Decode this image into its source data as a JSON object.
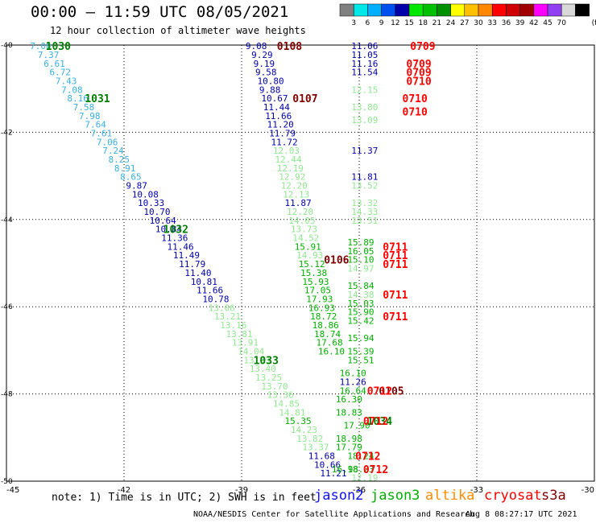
{
  "header": {
    "title": "00:00 – 11:59 UTC 08/05/2021",
    "subtitle": "12 hour collection of altimeter wave heights"
  },
  "colorbar": {
    "colors": [
      "#808080",
      "#00e8e8",
      "#00b0ff",
      "#0050f0",
      "#0000a8",
      "#00e800",
      "#00c000",
      "#009000",
      "#ffff00",
      "#ffc000",
      "#ff8800",
      "#ff0000",
      "#d00000",
      "#a00000",
      "#ff00ff",
      "#9040f0",
      "#d8d8d8",
      "#000000"
    ],
    "labels": [
      "3",
      "6",
      "9",
      "12",
      "15",
      "18",
      "21",
      "24",
      "27",
      "30",
      "33",
      "36",
      "39",
      "42",
      "45",
      "70"
    ],
    "unit": "(ft)"
  },
  "footer": {
    "notes": "note: 1) Time is in UTC; 2) SWH is in feet",
    "credit": "NOAA/NESDIS Center for Satellite Applications and Research",
    "timestamp": "Aug  8 08:27:17 UTC 2021"
  },
  "satellites": [
    {
      "name": "jason2",
      "color": "#1010ff"
    },
    {
      "name": "jason3",
      "color": "#00b000"
    },
    {
      "name": "altika",
      "color": "#ff8c00"
    },
    {
      "name": "cryosat",
      "color": "#ff0000"
    },
    {
      "name": "s3a",
      "color": "#800000"
    }
  ],
  "chart_data": {
    "type": "scatter",
    "x_ticks": [
      "-45",
      "-42",
      "-39",
      "-36",
      "-33",
      "-30"
    ],
    "y_ticks": [
      "-50",
      "-48",
      "-46",
      "-44",
      "-42",
      "-40"
    ],
    "xlim": [
      -45,
      -30
    ],
    "ylim": [
      -50,
      -40
    ],
    "grid": true,
    "points": [
      {
        "x": -44.4,
        "y": -40.02,
        "label": "7.00",
        "color": "#38b0e0"
      },
      {
        "x": -44.2,
        "y": -40.22,
        "label": "7.37",
        "color": "#38b0e0"
      },
      {
        "x": -44.05,
        "y": -40.42,
        "label": "6.61",
        "color": "#38b0e0"
      },
      {
        "x": -43.9,
        "y": -40.62,
        "label": "6.72",
        "color": "#38b0e0"
      },
      {
        "x": -43.75,
        "y": -40.82,
        "label": "7.43",
        "color": "#38b0e0"
      },
      {
        "x": -43.6,
        "y": -41.02,
        "label": "7.08",
        "color": "#38b0e0"
      },
      {
        "x": -43.45,
        "y": -41.22,
        "label": "8.16",
        "color": "#38b0e0"
      },
      {
        "x": -43.3,
        "y": -41.42,
        "label": "7.58",
        "color": "#38b0e0"
      },
      {
        "x": -43.15,
        "y": -41.62,
        "label": "7.98",
        "color": "#38b0e0"
      },
      {
        "x": -43.0,
        "y": -41.82,
        "label": "7.64",
        "color": "#38b0e0"
      },
      {
        "x": -42.85,
        "y": -42.02,
        "label": "7.61",
        "color": "#38b0e0"
      },
      {
        "x": -42.7,
        "y": -42.22,
        "label": "7.06",
        "color": "#38b0e0"
      },
      {
        "x": -42.55,
        "y": -42.42,
        "label": "7.24",
        "color": "#38b0e0"
      },
      {
        "x": -42.4,
        "y": -42.62,
        "label": "8.25",
        "color": "#38b0e0"
      },
      {
        "x": -42.25,
        "y": -42.82,
        "label": "8.91",
        "color": "#38b0e0"
      },
      {
        "x": -42.1,
        "y": -43.02,
        "label": "8.65",
        "color": "#38b0e0"
      },
      {
        "x": -41.95,
        "y": -43.22,
        "label": "9.87",
        "color": "#0000a8"
      },
      {
        "x": -41.8,
        "y": -43.42,
        "label": "10.08",
        "color": "#0000a8"
      },
      {
        "x": -41.65,
        "y": -43.62,
        "label": "10.33",
        "color": "#0000a8"
      },
      {
        "x": -41.5,
        "y": -43.82,
        "label": "10.70",
        "color": "#0000a8"
      },
      {
        "x": -41.35,
        "y": -44.02,
        "label": "10.64",
        "color": "#0000a8"
      },
      {
        "x": -41.2,
        "y": -44.22,
        "label": "10.84",
        "color": "#0000a8"
      },
      {
        "x": -41.05,
        "y": -44.42,
        "label": "11.36",
        "color": "#0000a8"
      },
      {
        "x": -40.9,
        "y": -44.62,
        "label": "11.46",
        "color": "#0000a8"
      },
      {
        "x": -40.75,
        "y": -44.82,
        "label": "11.49",
        "color": "#0000a8"
      },
      {
        "x": -40.6,
        "y": -45.02,
        "label": "11.79",
        "color": "#0000a8"
      },
      {
        "x": -40.45,
        "y": -45.22,
        "label": "11.40",
        "color": "#0000a8"
      },
      {
        "x": -40.3,
        "y": -45.42,
        "label": "10.81",
        "color": "#0000a8"
      },
      {
        "x": -40.15,
        "y": -45.62,
        "label": "11.66",
        "color": "#0000a8"
      },
      {
        "x": -40.0,
        "y": -45.82,
        "label": "10.78",
        "color": "#0000a8"
      },
      {
        "x": -39.85,
        "y": -46.02,
        "label": "13.06",
        "color": "#90e890"
      },
      {
        "x": -39.7,
        "y": -46.22,
        "label": "13.21",
        "color": "#90e890"
      },
      {
        "x": -39.55,
        "y": -46.42,
        "label": "13.16",
        "color": "#90e890"
      },
      {
        "x": -39.4,
        "y": -46.62,
        "label": "13.81",
        "color": "#90e890"
      },
      {
        "x": -39.25,
        "y": -46.82,
        "label": "13.91",
        "color": "#90e890"
      },
      {
        "x": -39.1,
        "y": -47.02,
        "label": "14.04",
        "color": "#90e890"
      },
      {
        "x": -38.95,
        "y": -47.22,
        "label": "13.23",
        "color": "#90e890"
      },
      {
        "x": -38.8,
        "y": -47.42,
        "label": "13.40",
        "color": "#90e890"
      },
      {
        "x": -38.65,
        "y": -47.62,
        "label": "13.25",
        "color": "#90e890"
      },
      {
        "x": -38.5,
        "y": -47.82,
        "label": "13.70",
        "color": "#90e890"
      },
      {
        "x": -38.35,
        "y": -48.02,
        "label": "13.36",
        "color": "#90e890"
      },
      {
        "x": -38.2,
        "y": -48.22,
        "label": "14.85",
        "color": "#90e890"
      },
      {
        "x": -38.05,
        "y": -48.42,
        "label": "14.81",
        "color": "#90e890"
      },
      {
        "x": -37.9,
        "y": -48.62,
        "label": "15.35",
        "color": "#00b000"
      },
      {
        "x": -37.75,
        "y": -48.82,
        "label": "14.23",
        "color": "#90e890"
      },
      {
        "x": -37.6,
        "y": -49.02,
        "label": "13.82",
        "color": "#90e890"
      },
      {
        "x": -37.45,
        "y": -49.22,
        "label": "13.37",
        "color": "#90e890"
      },
      {
        "x": -37.3,
        "y": -49.42,
        "label": "11.68",
        "color": "#0000a8"
      },
      {
        "x": -37.15,
        "y": -49.62,
        "label": "10.66",
        "color": "#0000a8"
      },
      {
        "x": -37.0,
        "y": -49.82,
        "label": "11.21",
        "color": "#0000a8"
      },
      {
        "x": -38.9,
        "y": -40.02,
        "label": "9.08",
        "color": "#0000a8"
      },
      {
        "x": -38.75,
        "y": -40.22,
        "label": "9.29",
        "color": "#0000a8"
      },
      {
        "x": -38.7,
        "y": -40.42,
        "label": "9.19",
        "color": "#0000a8"
      },
      {
        "x": -38.65,
        "y": -40.62,
        "label": "9.58",
        "color": "#0000a8"
      },
      {
        "x": -38.6,
        "y": -40.82,
        "label": "10.80",
        "color": "#0000a8"
      },
      {
        "x": -38.55,
        "y": -41.02,
        "label": "9.88",
        "color": "#0000a8"
      },
      {
        "x": -38.5,
        "y": -41.22,
        "label": "10.67",
        "color": "#0000a8"
      },
      {
        "x": -38.45,
        "y": -41.42,
        "label": "11.44",
        "color": "#0000a8"
      },
      {
        "x": -38.4,
        "y": -41.62,
        "label": "11.66",
        "color": "#0000a8"
      },
      {
        "x": -38.35,
        "y": -41.82,
        "label": "11.20",
        "color": "#0000a8"
      },
      {
        "x": -38.3,
        "y": -42.02,
        "label": "11.79",
        "color": "#0000a8"
      },
      {
        "x": -38.25,
        "y": -42.22,
        "label": "11.72",
        "color": "#0000a8"
      },
      {
        "x": -38.2,
        "y": -42.42,
        "label": "12.03",
        "color": "#90e890"
      },
      {
        "x": -38.15,
        "y": -42.62,
        "label": "12.44",
        "color": "#90e890"
      },
      {
        "x": -38.1,
        "y": -42.82,
        "label": "12.19",
        "color": "#90e890"
      },
      {
        "x": -38.05,
        "y": -43.02,
        "label": "12.92",
        "color": "#90e890"
      },
      {
        "x": -38.0,
        "y": -43.22,
        "label": "12.20",
        "color": "#90e890"
      },
      {
        "x": -37.95,
        "y": -43.42,
        "label": "12.13",
        "color": "#90e890"
      },
      {
        "x": -37.9,
        "y": -43.62,
        "label": "11.87",
        "color": "#0000a8"
      },
      {
        "x": -37.85,
        "y": -43.82,
        "label": "12.20",
        "color": "#90e890"
      },
      {
        "x": -37.8,
        "y": -44.02,
        "label": "14.05",
        "color": "#90e890"
      },
      {
        "x": -37.75,
        "y": -44.22,
        "label": "13.73",
        "color": "#90e890"
      },
      {
        "x": -37.7,
        "y": -44.42,
        "label": "14.52",
        "color": "#90e890"
      },
      {
        "x": -37.65,
        "y": -44.62,
        "label": "15.91",
        "color": "#00b000"
      },
      {
        "x": -37.6,
        "y": -44.82,
        "label": "14.93",
        "color": "#90e890"
      },
      {
        "x": -37.55,
        "y": -45.02,
        "label": "15.12",
        "color": "#00b000"
      },
      {
        "x": -37.5,
        "y": -45.22,
        "label": "15.38",
        "color": "#00b000"
      },
      {
        "x": -37.45,
        "y": -45.42,
        "label": "15.93",
        "color": "#00b000"
      },
      {
        "x": -37.4,
        "y": -45.62,
        "label": "17.05",
        "color": "#00b000"
      },
      {
        "x": -37.35,
        "y": -45.82,
        "label": "17.93",
        "color": "#00b000"
      },
      {
        "x": -37.3,
        "y": -46.02,
        "label": "16.93",
        "color": "#00b000"
      },
      {
        "x": -37.25,
        "y": -46.22,
        "label": "18.72",
        "color": "#00b000"
      },
      {
        "x": -37.2,
        "y": -46.42,
        "label": "18.86",
        "color": "#00b000"
      },
      {
        "x": -37.15,
        "y": -46.62,
        "label": "18.74",
        "color": "#00b000"
      },
      {
        "x": -37.1,
        "y": -46.82,
        "label": "17.68",
        "color": "#00b000"
      },
      {
        "x": -37.05,
        "y": -47.02,
        "label": "16.10",
        "color": "#00b000"
      },
      {
        "x": -36.2,
        "y": -40.02,
        "label": "11.06",
        "color": "#0000a8"
      },
      {
        "x": -36.2,
        "y": -40.22,
        "label": "11.05",
        "color": "#0000a8"
      },
      {
        "x": -36.2,
        "y": -40.42,
        "label": "11.16",
        "color": "#0000a8"
      },
      {
        "x": -36.2,
        "y": -40.62,
        "label": "11.54",
        "color": "#0000a8"
      },
      {
        "x": -36.2,
        "y": -41.02,
        "label": "12.15",
        "color": "#90e890"
      },
      {
        "x": -36.2,
        "y": -41.42,
        "label": "13.80",
        "color": "#90e890"
      },
      {
        "x": -36.2,
        "y": -41.72,
        "label": "13.09",
        "color": "#90e890"
      },
      {
        "x": -36.2,
        "y": -42.42,
        "label": "11.37",
        "color": "#0000a8"
      },
      {
        "x": -36.2,
        "y": -43.02,
        "label": "11.81",
        "color": "#0000a8"
      },
      {
        "x": -36.2,
        "y": -43.22,
        "label": "13.52",
        "color": "#90e890"
      },
      {
        "x": -36.2,
        "y": -43.62,
        "label": "13.32",
        "color": "#90e890"
      },
      {
        "x": -36.2,
        "y": -43.82,
        "label": "14.33",
        "color": "#90e890"
      },
      {
        "x": -36.2,
        "y": -44.02,
        "label": "13.51",
        "color": "#90e890"
      },
      {
        "x": -36.3,
        "y": -44.52,
        "label": "15.89",
        "color": "#00b000"
      },
      {
        "x": -36.3,
        "y": -44.72,
        "label": "16.05",
        "color": "#00b000"
      },
      {
        "x": -36.3,
        "y": -44.92,
        "label": "15.10",
        "color": "#00b000"
      },
      {
        "x": -36.3,
        "y": -45.12,
        "label": "14.97",
        "color": "#90e890"
      },
      {
        "x": -36.3,
        "y": -45.52,
        "label": "15.84",
        "color": "#00b000"
      },
      {
        "x": -36.3,
        "y": -45.72,
        "label": "14.38",
        "color": "#90e890"
      },
      {
        "x": -36.3,
        "y": -45.92,
        "label": "15.03",
        "color": "#00b000"
      },
      {
        "x": -36.3,
        "y": -46.12,
        "label": "15.90",
        "color": "#00b000"
      },
      {
        "x": -36.3,
        "y": -46.32,
        "label": "15.42",
        "color": "#00b000"
      },
      {
        "x": -36.3,
        "y": -46.72,
        "label": "15.94",
        "color": "#00b000"
      },
      {
        "x": -36.3,
        "y": -47.02,
        "label": "15.39",
        "color": "#00b000"
      },
      {
        "x": -36.3,
        "y": -47.22,
        "label": "15.51",
        "color": "#00b000"
      },
      {
        "x": -36.5,
        "y": -47.52,
        "label": "16.10",
        "color": "#00b000"
      },
      {
        "x": -36.5,
        "y": -47.72,
        "label": "11.26",
        "color": "#0000a8"
      },
      {
        "x": -36.5,
        "y": -47.92,
        "label": "16.64",
        "color": "#00b000"
      },
      {
        "x": -36.6,
        "y": -48.12,
        "label": "16.30",
        "color": "#00b000"
      },
      {
        "x": -36.6,
        "y": -48.42,
        "label": "18.83",
        "color": "#00b000"
      },
      {
        "x": -36.4,
        "y": -48.72,
        "label": "17.90",
        "color": "#00b000"
      },
      {
        "x": -36.6,
        "y": -49.02,
        "label": "18.98",
        "color": "#00b000"
      },
      {
        "x": -36.6,
        "y": -49.22,
        "label": "17.79",
        "color": "#00b000"
      },
      {
        "x": -36.3,
        "y": -49.42,
        "label": "18.24",
        "color": "#00b000"
      },
      {
        "x": -36.7,
        "y": -49.72,
        "label": "16.98",
        "color": "#00b000"
      },
      {
        "x": -36.3,
        "y": -49.72,
        "label": "18.23",
        "color": "#00b000"
      },
      {
        "x": -36.2,
        "y": -49.92,
        "label": "12.19",
        "color": "#90e890"
      }
    ],
    "time_labels": [
      {
        "x": -44.0,
        "y": -40.02,
        "label": "1030",
        "color": "#008000"
      },
      {
        "x": -43.0,
        "y": -41.22,
        "label": "1031",
        "color": "#008000"
      },
      {
        "x": -41.0,
        "y": -44.22,
        "label": "1032",
        "color": "#008000"
      },
      {
        "x": -38.7,
        "y": -47.22,
        "label": "1033",
        "color": "#008000"
      },
      {
        "x": -35.8,
        "y": -48.62,
        "label": "1034",
        "color": "#008000"
      },
      {
        "x": -38.1,
        "y": -40.02,
        "label": "0108",
        "color": "#800000"
      },
      {
        "x": -37.7,
        "y": -41.22,
        "label": "0107",
        "color": "#800000"
      },
      {
        "x": -36.9,
        "y": -44.92,
        "label": "0106",
        "color": "#800000"
      },
      {
        "x": -35.5,
        "y": -47.92,
        "label": "0105",
        "color": "#800000"
      },
      {
        "x": -34.7,
        "y": -40.02,
        "label": "0709",
        "color": "#ff0000"
      },
      {
        "x": -34.8,
        "y": -40.42,
        "label": "0709",
        "color": "#ff0000"
      },
      {
        "x": -34.8,
        "y": -40.62,
        "label": "0709",
        "color": "#ff0000"
      },
      {
        "x": -34.8,
        "y": -40.82,
        "label": "0710",
        "color": "#ff0000"
      },
      {
        "x": -34.9,
        "y": -41.22,
        "label": "0710",
        "color": "#ff0000"
      },
      {
        "x": -34.9,
        "y": -41.52,
        "label": "0710",
        "color": "#ff0000"
      },
      {
        "x": -35.4,
        "y": -44.62,
        "label": "0711",
        "color": "#ff0000"
      },
      {
        "x": -35.4,
        "y": -44.82,
        "label": "0711",
        "color": "#ff0000"
      },
      {
        "x": -35.4,
        "y": -45.02,
        "label": "0711",
        "color": "#ff0000"
      },
      {
        "x": -35.4,
        "y": -45.72,
        "label": "0711",
        "color": "#ff0000"
      },
      {
        "x": -35.4,
        "y": -46.22,
        "label": "0711",
        "color": "#ff0000"
      },
      {
        "x": -35.8,
        "y": -47.92,
        "label": "0712",
        "color": "#ff0000"
      },
      {
        "x": -35.9,
        "y": -48.62,
        "label": "0712",
        "color": "#ff0000"
      },
      {
        "x": -35.9,
        "y": -49.72,
        "label": "0712",
        "color": "#ff0000"
      },
      {
        "x": -36.1,
        "y": -49.42,
        "label": "0712",
        "color": "#ff0000"
      }
    ]
  }
}
